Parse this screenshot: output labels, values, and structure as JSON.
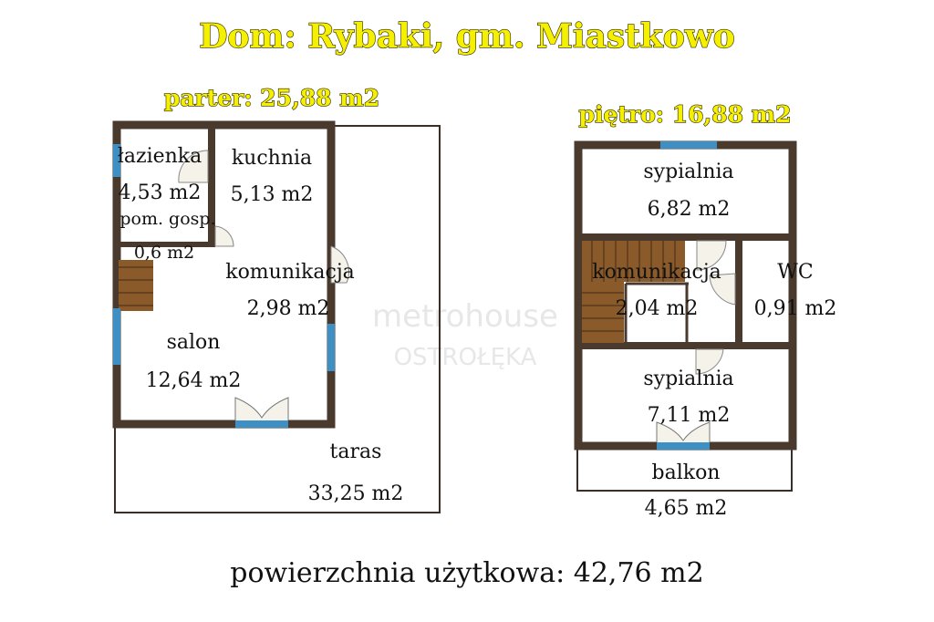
{
  "title": "Dom: Rybaki, gm. Miastkowo",
  "ground_floor": {
    "label": "parter: 25,88 m2",
    "rooms": [
      {
        "name": "łazienka",
        "area": "4,53 m2"
      },
      {
        "name": "kuchnia",
        "area": "5,13 m2"
      },
      {
        "name": "pom. gosp.",
        "area": "0,6 m2"
      },
      {
        "name": "komunikacja",
        "area": "2,98 m2"
      },
      {
        "name": "salon",
        "area": "12,64 m2"
      },
      {
        "name": "taras",
        "area": "33,25 m2"
      }
    ]
  },
  "upper_floor": {
    "label": "piętro: 16,88 m2",
    "rooms": [
      {
        "name": "sypialnia",
        "area": "6,82 m2"
      },
      {
        "name": "komunikacja",
        "area": "2,04 m2"
      },
      {
        "name": "WC",
        "area": "0,91 m2"
      },
      {
        "name": "sypialnia",
        "area": "7,11 m2"
      },
      {
        "name": "balkon",
        "area": "4,65 m2"
      }
    ]
  },
  "watermark": {
    "brand": "metrohouse",
    "city": "OSTROŁĘKA"
  },
  "footer": "powierzchnia użytkowa: 42,76 m2",
  "colors": {
    "wall": "#4a3a2e",
    "window": "#3d8fc4",
    "stairs": "#8b5a2b",
    "title": "#f5f000"
  }
}
